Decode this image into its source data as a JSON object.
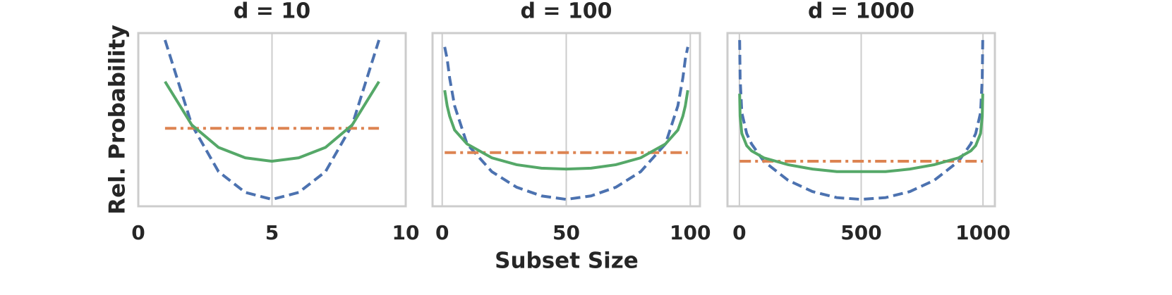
{
  "chart_data": [
    {
      "type": "line",
      "title": "d = 10",
      "ylabel": "Rel. Probability",
      "xlim": [
        0,
        10
      ],
      "xticks": [
        0,
        5,
        10
      ],
      "ylim": [
        0,
        1
      ],
      "grid": true,
      "series": [
        {
          "color": "#4c72b0",
          "linestyle": "dashed",
          "x": [
            1,
            2,
            3,
            4,
            5,
            6,
            7,
            8,
            9
          ],
          "values": [
            0.96,
            0.47,
            0.2,
            0.08,
            0.04,
            0.08,
            0.2,
            0.47,
            0.96
          ]
        },
        {
          "color": "#dd8452",
          "linestyle": "dashdot",
          "x": [
            1,
            9
          ],
          "values": [
            0.45,
            0.45
          ]
        },
        {
          "color": "#55a868",
          "linestyle": "solid",
          "x": [
            1,
            2,
            3,
            4,
            5,
            6,
            7,
            8,
            9
          ],
          "values": [
            0.72,
            0.47,
            0.34,
            0.28,
            0.26,
            0.28,
            0.34,
            0.47,
            0.72
          ]
        }
      ]
    },
    {
      "type": "line",
      "title": "d = 100",
      "xlabel": "Subset Size",
      "xlim": [
        -3.9,
        103.9
      ],
      "xticks": [
        0,
        50,
        100
      ],
      "ylim": [
        0,
        1
      ],
      "grid": true,
      "series": [
        {
          "color": "#4c72b0",
          "linestyle": "dashed",
          "x": [
            1,
            2,
            3,
            5,
            10,
            20,
            30,
            40,
            50,
            60,
            70,
            80,
            90,
            95,
            97,
            98,
            99
          ],
          "values": [
            0.92,
            0.85,
            0.74,
            0.58,
            0.36,
            0.2,
            0.11,
            0.06,
            0.04,
            0.06,
            0.11,
            0.2,
            0.36,
            0.58,
            0.74,
            0.85,
            0.92
          ]
        },
        {
          "color": "#dd8452",
          "linestyle": "dashdot",
          "x": [
            1,
            99
          ],
          "values": [
            0.31,
            0.31
          ]
        },
        {
          "color": "#55a868",
          "linestyle": "solid",
          "x": [
            1,
            2,
            3,
            5,
            10,
            20,
            30,
            40,
            50,
            60,
            70,
            80,
            90,
            95,
            97,
            98,
            99
          ],
          "values": [
            0.67,
            0.58,
            0.52,
            0.44,
            0.36,
            0.28,
            0.24,
            0.22,
            0.215,
            0.22,
            0.24,
            0.28,
            0.36,
            0.44,
            0.52,
            0.58,
            0.67
          ]
        }
      ]
    },
    {
      "type": "line",
      "title": "d = 1000",
      "xlim": [
        -48.9,
        1048.9
      ],
      "xticks": [
        0,
        500,
        1000
      ],
      "ylim": [
        0,
        1
      ],
      "grid": true,
      "series": [
        {
          "color": "#4c72b0",
          "linestyle": "dashed",
          "x": [
            1,
            3,
            10,
            30,
            50,
            100,
            200,
            300,
            400,
            500,
            600,
            700,
            800,
            900,
            950,
            970,
            990,
            997,
            999
          ],
          "values": [
            0.96,
            0.74,
            0.54,
            0.42,
            0.36,
            0.26,
            0.15,
            0.085,
            0.05,
            0.04,
            0.05,
            0.085,
            0.15,
            0.26,
            0.36,
            0.42,
            0.54,
            0.74,
            0.96
          ]
        },
        {
          "color": "#dd8452",
          "linestyle": "dashdot",
          "x": [
            1,
            999
          ],
          "values": [
            0.26,
            0.26
          ]
        },
        {
          "color": "#55a868",
          "linestyle": "solid",
          "x": [
            1,
            3,
            10,
            30,
            50,
            100,
            200,
            300,
            400,
            500,
            600,
            700,
            800,
            900,
            950,
            970,
            990,
            997,
            999
          ],
          "values": [
            0.65,
            0.52,
            0.42,
            0.35,
            0.32,
            0.28,
            0.24,
            0.215,
            0.2,
            0.2,
            0.2,
            0.215,
            0.24,
            0.28,
            0.32,
            0.35,
            0.42,
            0.52,
            0.65
          ]
        }
      ]
    }
  ]
}
